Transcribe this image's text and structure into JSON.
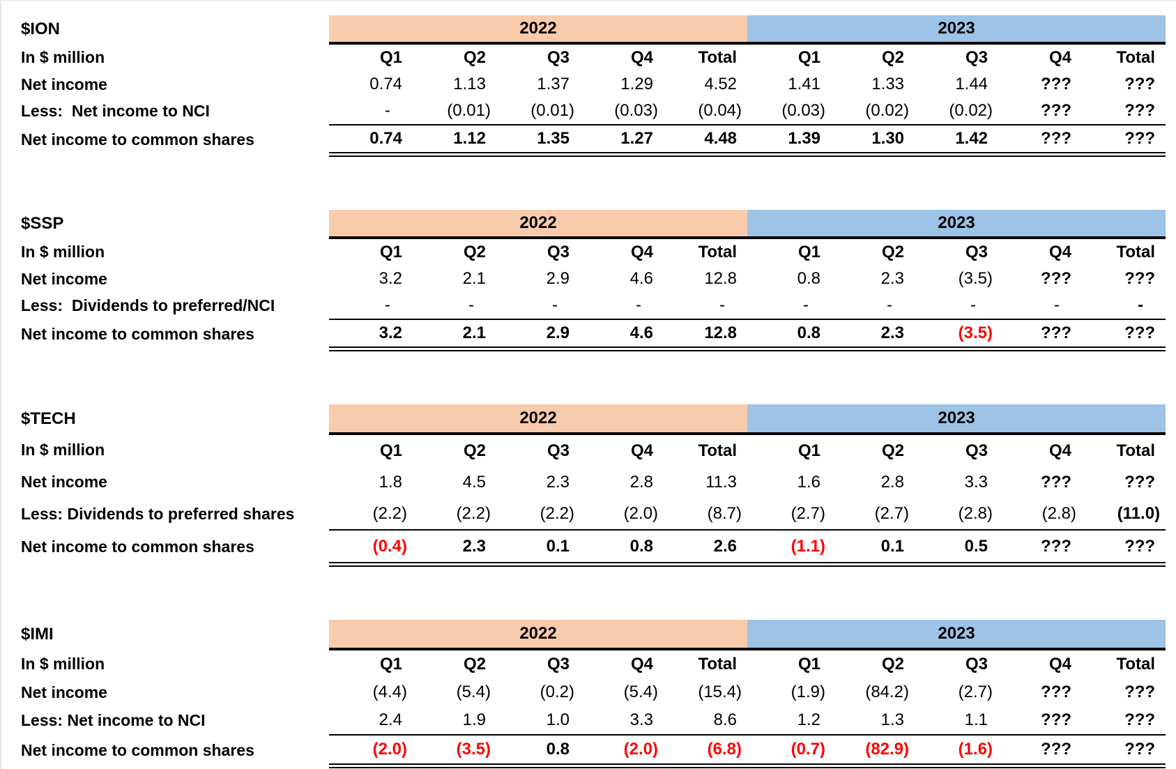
{
  "meta": {
    "unit_label": "In $ million"
  },
  "years": [
    "2022",
    "2023"
  ],
  "quarter_headers": [
    "Q1",
    "Q2",
    "Q3",
    "Q4",
    "Total"
  ],
  "colors": {
    "band_2022": "#F8CBAD",
    "band_2023": "#9DC3E6",
    "negative_red": "#FF0000",
    "text": "#000000"
  },
  "tables": [
    {
      "ticker": "$ION",
      "rows": [
        {
          "label": "Net income",
          "cells": [
            {
              "v": "0.74"
            },
            {
              "v": "1.13"
            },
            {
              "v": "1.37"
            },
            {
              "v": "1.29"
            },
            {
              "v": "4.52"
            },
            {
              "v": "1.41"
            },
            {
              "v": "1.33"
            },
            {
              "v": "1.44"
            },
            {
              "v": "???",
              "b": true
            },
            {
              "v": "???",
              "b": true
            }
          ]
        },
        {
          "label": "Less:  Net income to NCI",
          "cells": [
            {
              "v": "-"
            },
            {
              "v": "(0.01)"
            },
            {
              "v": "(0.01)"
            },
            {
              "v": "(0.03)"
            },
            {
              "v": "(0.04)"
            },
            {
              "v": "(0.03)"
            },
            {
              "v": "(0.02)"
            },
            {
              "v": "(0.02)"
            },
            {
              "v": "???",
              "b": true
            },
            {
              "v": "???",
              "b": true
            }
          ]
        },
        {
          "label": "Net income to common shares",
          "total": true,
          "cells": [
            {
              "v": "0.74"
            },
            {
              "v": "1.12"
            },
            {
              "v": "1.35"
            },
            {
              "v": "1.27"
            },
            {
              "v": "4.48"
            },
            {
              "v": "1.39"
            },
            {
              "v": "1.30"
            },
            {
              "v": "1.42"
            },
            {
              "v": "???"
            },
            {
              "v": "???"
            }
          ]
        }
      ]
    },
    {
      "ticker": "$SSP",
      "rows": [
        {
          "label": "Net income",
          "cells": [
            {
              "v": "3.2"
            },
            {
              "v": "2.1"
            },
            {
              "v": "2.9"
            },
            {
              "v": "4.6"
            },
            {
              "v": "12.8"
            },
            {
              "v": "0.8"
            },
            {
              "v": "2.3"
            },
            {
              "v": "(3.5)"
            },
            {
              "v": "???",
              "b": true
            },
            {
              "v": "???",
              "b": true
            }
          ]
        },
        {
          "label": "Less:  Dividends to preferred/NCI",
          "cells": [
            {
              "v": "-"
            },
            {
              "v": "-"
            },
            {
              "v": "-"
            },
            {
              "v": "-"
            },
            {
              "v": "-"
            },
            {
              "v": "-"
            },
            {
              "v": "-"
            },
            {
              "v": "-"
            },
            {
              "v": "-"
            },
            {
              "v": "-",
              "b": true
            }
          ]
        },
        {
          "label": "Net income to common shares",
          "total": true,
          "cells": [
            {
              "v": "3.2"
            },
            {
              "v": "2.1"
            },
            {
              "v": "2.9"
            },
            {
              "v": "4.6"
            },
            {
              "v": "12.8"
            },
            {
              "v": "0.8"
            },
            {
              "v": "2.3"
            },
            {
              "v": "(3.5)",
              "r": true
            },
            {
              "v": "???"
            },
            {
              "v": "???"
            }
          ]
        }
      ]
    },
    {
      "ticker": "$TECH",
      "rows": [
        {
          "label": "Net income",
          "cells": [
            {
              "v": "1.8"
            },
            {
              "v": "4.5"
            },
            {
              "v": "2.3"
            },
            {
              "v": "2.8"
            },
            {
              "v": "11.3"
            },
            {
              "v": "1.6"
            },
            {
              "v": "2.8"
            },
            {
              "v": "3.3"
            },
            {
              "v": "???",
              "b": true
            },
            {
              "v": "???",
              "b": true
            }
          ]
        },
        {
          "label": "Less: Dividends to preferred shares",
          "cells": [
            {
              "v": "(2.2)"
            },
            {
              "v": "(2.2)"
            },
            {
              "v": "(2.2)"
            },
            {
              "v": "(2.0)"
            },
            {
              "v": "(8.7)"
            },
            {
              "v": "(2.7)"
            },
            {
              "v": "(2.7)"
            },
            {
              "v": "(2.8)"
            },
            {
              "v": "(2.8)"
            },
            {
              "v": "(11.0)",
              "b": true
            }
          ]
        },
        {
          "label": "Net income to common shares",
          "total": true,
          "cells": [
            {
              "v": "(0.4)",
              "r": true
            },
            {
              "v": "2.3"
            },
            {
              "v": "0.1"
            },
            {
              "v": "0.8"
            },
            {
              "v": "2.6"
            },
            {
              "v": "(1.1)",
              "r": true
            },
            {
              "v": "0.1"
            },
            {
              "v": "0.5"
            },
            {
              "v": "???"
            },
            {
              "v": "???"
            }
          ]
        }
      ]
    },
    {
      "ticker": "$IMI",
      "rows": [
        {
          "label": "Net income",
          "cells": [
            {
              "v": "(4.4)"
            },
            {
              "v": "(5.4)"
            },
            {
              "v": "(0.2)"
            },
            {
              "v": "(5.4)"
            },
            {
              "v": "(15.4)"
            },
            {
              "v": "(1.9)"
            },
            {
              "v": "(84.2)"
            },
            {
              "v": "(2.7)"
            },
            {
              "v": "???",
              "b": true
            },
            {
              "v": "???",
              "b": true
            }
          ]
        },
        {
          "label": "Less: Net income to NCI",
          "cells": [
            {
              "v": "2.4"
            },
            {
              "v": "1.9"
            },
            {
              "v": "1.0"
            },
            {
              "v": "3.3"
            },
            {
              "v": "8.6"
            },
            {
              "v": "1.2"
            },
            {
              "v": "1.3"
            },
            {
              "v": "1.1"
            },
            {
              "v": "???",
              "b": true
            },
            {
              "v": "???",
              "b": true
            }
          ]
        },
        {
          "label": "Net income to common shares",
          "total": true,
          "cells": [
            {
              "v": "(2.0)",
              "r": true
            },
            {
              "v": "(3.5)",
              "r": true
            },
            {
              "v": "0.8"
            },
            {
              "v": "(2.0)",
              "r": true
            },
            {
              "v": "(6.8)",
              "r": true
            },
            {
              "v": "(0.7)",
              "r": true
            },
            {
              "v": "(82.9)",
              "r": true
            },
            {
              "v": "(1.6)",
              "r": true
            },
            {
              "v": "???"
            },
            {
              "v": "???"
            }
          ]
        }
      ]
    }
  ]
}
